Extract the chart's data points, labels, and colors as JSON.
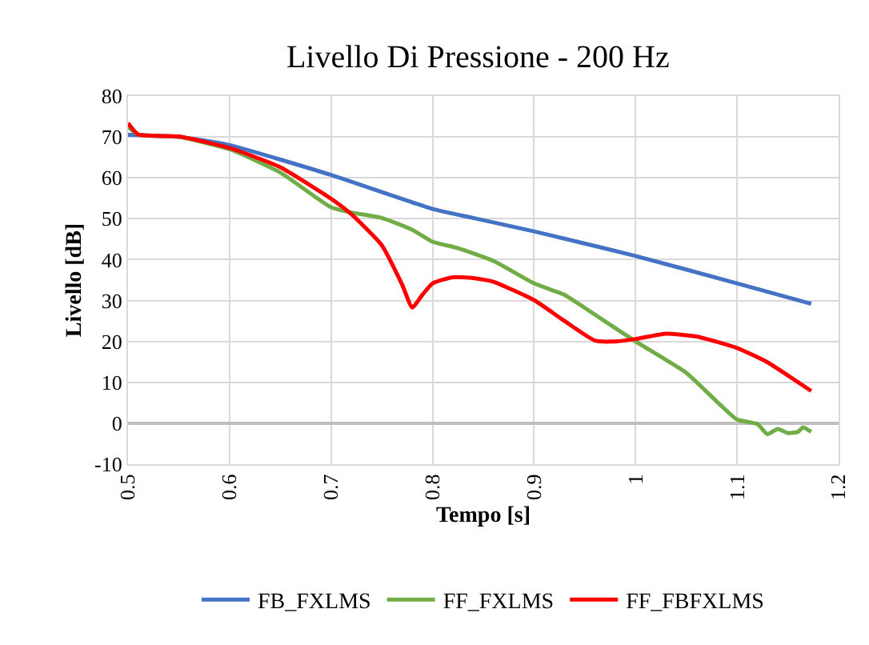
{
  "chart_data": {
    "type": "line",
    "title": "Livello Di Pressione - 200 Hz",
    "xlabel": "Tempo [s]",
    "ylabel": "Livello [dB]",
    "xlim": [
      0.5,
      1.2
    ],
    "xticks": [
      0.5,
      0.6,
      0.7,
      0.8,
      0.9,
      1,
      1.1,
      1.2
    ],
    "ylim": [
      -10,
      80
    ],
    "yticks": [
      -10,
      0,
      10,
      20,
      30,
      40,
      50,
      60,
      70,
      80
    ],
    "grid": true,
    "legend": "bottom",
    "marker": "none",
    "line_style": "solid",
    "series": [
      {
        "name": "FB_FXLMS",
        "color": "#4472c4",
        "x": [
          0.5,
          0.55,
          0.6,
          0.7,
          0.8,
          0.84,
          0.9,
          1.0,
          1.1,
          1.173
        ],
        "values": [
          70.5,
          70.0,
          68.0,
          60.7,
          52.4,
          50.2,
          46.9,
          40.9,
          34.2,
          29.2
        ]
      },
      {
        "name": "FF_FXLMS",
        "color": "#70ad47",
        "x": [
          0.5,
          0.51,
          0.55,
          0.6,
          0.65,
          0.7,
          0.72,
          0.75,
          0.78,
          0.8,
          0.825,
          0.86,
          0.9,
          0.93,
          0.95,
          1.0,
          1.05,
          1.08,
          1.1,
          1.12,
          1.13,
          1.14,
          1.15,
          1.16,
          1.165,
          1.173
        ],
        "values": [
          72.5,
          70.6,
          70.0,
          67.0,
          61.3,
          52.8,
          51.5,
          50.2,
          47.3,
          44.4,
          42.8,
          39.7,
          34.2,
          31.4,
          28.2,
          20.0,
          12.3,
          5.3,
          0.9,
          -0.2,
          -2.7,
          -1.4,
          -2.4,
          -2.1,
          -1.0,
          -2.1
        ]
      },
      {
        "name": "FF_FBFXLMS",
        "color": "#ff0000",
        "x": [
          0.5,
          0.51,
          0.55,
          0.6,
          0.65,
          0.7,
          0.72,
          0.75,
          0.77,
          0.78,
          0.79,
          0.8,
          0.82,
          0.84,
          0.86,
          0.9,
          0.93,
          0.96,
          0.98,
          1.0,
          1.03,
          1.06,
          1.1,
          1.13,
          1.15,
          1.173
        ],
        "values": [
          73.4,
          70.6,
          70.1,
          67.3,
          62.6,
          54.9,
          51.1,
          43.5,
          33.9,
          28.3,
          31.4,
          34.2,
          35.7,
          35.5,
          34.6,
          30.1,
          25.0,
          20.2,
          20.0,
          20.6,
          21.9,
          21.2,
          18.4,
          14.9,
          11.7,
          7.9
        ]
      }
    ]
  }
}
